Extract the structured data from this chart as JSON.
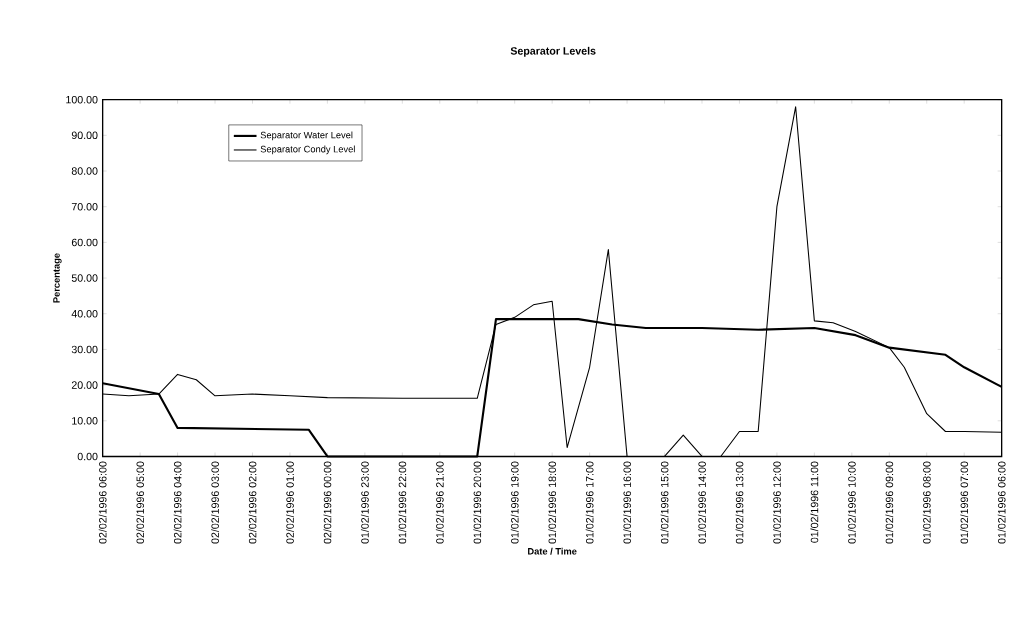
{
  "chart_data": {
    "type": "line",
    "title": "Separator Levels",
    "xlabel": "Date / Time",
    "ylabel": "Percentage",
    "xlim": [
      "1996-02-02T06:00",
      "1996-02-01T06:00"
    ],
    "xticks": [
      {
        "value": "1996-02-02T06:00",
        "label": "02/02/1996 06:00"
      },
      {
        "value": "1996-02-02T05:00",
        "label": "02/02/1996 05:00"
      },
      {
        "value": "1996-02-02T04:00",
        "label": "02/02/1996 04:00"
      },
      {
        "value": "1996-02-02T03:00",
        "label": "02/02/1996 03:00"
      },
      {
        "value": "1996-02-02T02:00",
        "label": "02/02/1996 02:00"
      },
      {
        "value": "1996-02-02T01:00",
        "label": "02/02/1996 01:00"
      },
      {
        "value": "1996-02-02T00:00",
        "label": "02/02/1996 00:00"
      },
      {
        "value": "1996-02-01T23:00",
        "label": "01/02/1996 23:00"
      },
      {
        "value": "1996-02-01T22:00",
        "label": "01/02/1996 22:00"
      },
      {
        "value": "1996-02-01T21:00",
        "label": "01/02/1996 21:00"
      },
      {
        "value": "1996-02-01T20:00",
        "label": "01/02/1996 20:00"
      },
      {
        "value": "1996-02-01T19:00",
        "label": "01/02/1996 19:00"
      },
      {
        "value": "1996-02-01T18:00",
        "label": "01/02/1996 18:00"
      },
      {
        "value": "1996-02-01T17:00",
        "label": "01/02/1996 17:00"
      },
      {
        "value": "1996-02-01T16:00",
        "label": "01/02/1996 16:00"
      },
      {
        "value": "1996-02-01T15:00",
        "label": "01/02/1996 15:00"
      },
      {
        "value": "1996-02-01T14:00",
        "label": "01/02/1996 14:00"
      },
      {
        "value": "1996-02-01T13:00",
        "label": "01/02/1996 13:00"
      },
      {
        "value": "1996-02-01T12:00",
        "label": "01/02/1996 12:00"
      },
      {
        "value": "1996-02-01T11:00",
        "label": "01/02/1996 11:00"
      },
      {
        "value": "1996-02-01T10:00",
        "label": "01/02/1996 10:00"
      },
      {
        "value": "1996-02-01T09:00",
        "label": "01/02/1996 09:00"
      },
      {
        "value": "1996-02-01T08:00",
        "label": "01/02/1996 08:00"
      },
      {
        "value": "1996-02-01T07:00",
        "label": "01/02/1996 07:00"
      },
      {
        "value": "1996-02-01T06:00",
        "label": "01/02/1996 06:00"
      }
    ],
    "ylim": [
      0,
      100
    ],
    "yticks": [
      {
        "value": 0,
        "label": "0.00"
      },
      {
        "value": 10,
        "label": "10.00"
      },
      {
        "value": 20,
        "label": "20.00"
      },
      {
        "value": 30,
        "label": "30.00"
      },
      {
        "value": 40,
        "label": "40.00"
      },
      {
        "value": 50,
        "label": "50.00"
      },
      {
        "value": 60,
        "label": "60.00"
      },
      {
        "value": 70,
        "label": "70.00"
      },
      {
        "value": 80,
        "label": "80.00"
      },
      {
        "value": 90,
        "label": "90.00"
      },
      {
        "value": 100,
        "label": "100.00"
      }
    ],
    "grid": false,
    "legend": "top left",
    "marker": "none",
    "line_style": "solid",
    "series": [
      {
        "name": "Separator Water Level",
        "color": "#000000",
        "x": [
          "1996-02-02T06:00",
          "1996-02-02T04:30",
          "1996-02-02T04:00",
          "1996-02-02T00:30",
          "1996-02-02T00:00",
          "1996-02-01T20:00",
          "1996-02-01T19:30",
          "1996-02-01T17:18",
          "1996-02-01T16:24",
          "1996-02-01T15:30",
          "1996-02-01T14:00",
          "1996-02-01T12:30",
          "1996-02-01T11:00",
          "1996-02-01T09:54",
          "1996-02-01T09:00",
          "1996-02-01T07:30",
          "1996-02-01T07:00",
          "1996-02-01T06:00"
        ],
        "values": [
          20.5,
          17.5,
          8,
          7.5,
          0,
          0,
          38.5,
          38.5,
          37,
          36,
          36,
          35.5,
          36,
          34,
          30.5,
          28.5,
          25,
          19.5
        ]
      },
      {
        "name": "Separator Condy Level",
        "color": "#000000",
        "x": [
          "1996-02-02T06:00",
          "1996-02-02T05:18",
          "1996-02-02T04:30",
          "1996-02-02T04:00",
          "1996-02-02T03:30",
          "1996-02-02T03:00",
          "1996-02-02T02:00",
          "1996-02-02T01:00",
          "1996-02-02T00:00",
          "1996-02-01T22:00",
          "1996-02-01T20:00",
          "1996-02-01T19:30",
          "1996-02-01T19:00",
          "1996-02-01T18:30",
          "1996-02-01T18:00",
          "1996-02-01T17:36",
          "1996-02-01T17:00",
          "1996-02-01T16:30",
          "1996-02-01T16:00",
          "1996-02-01T15:00",
          "1996-02-01T14:30",
          "1996-02-01T14:00",
          "1996-02-01T13:30",
          "1996-02-01T13:00",
          "1996-02-01T12:30",
          "1996-02-01T12:00",
          "1996-02-01T11:30",
          "1996-02-01T11:00",
          "1996-02-01T10:30",
          "1996-02-01T09:54",
          "1996-02-01T09:00",
          "1996-02-01T08:36",
          "1996-02-01T08:00",
          "1996-02-01T07:30",
          "1996-02-01T07:00",
          "1996-02-01T06:00"
        ],
        "values": [
          17.5,
          17,
          17.5,
          23,
          21.5,
          17,
          17.5,
          17,
          16.5,
          16.3,
          16.3,
          37,
          39,
          42.5,
          43.5,
          2.5,
          25,
          58,
          0,
          0,
          6,
          0,
          0,
          7,
          7,
          70,
          98,
          38,
          37.5,
          35,
          30.5,
          25,
          12,
          7,
          7,
          6.8
        ]
      }
    ]
  }
}
